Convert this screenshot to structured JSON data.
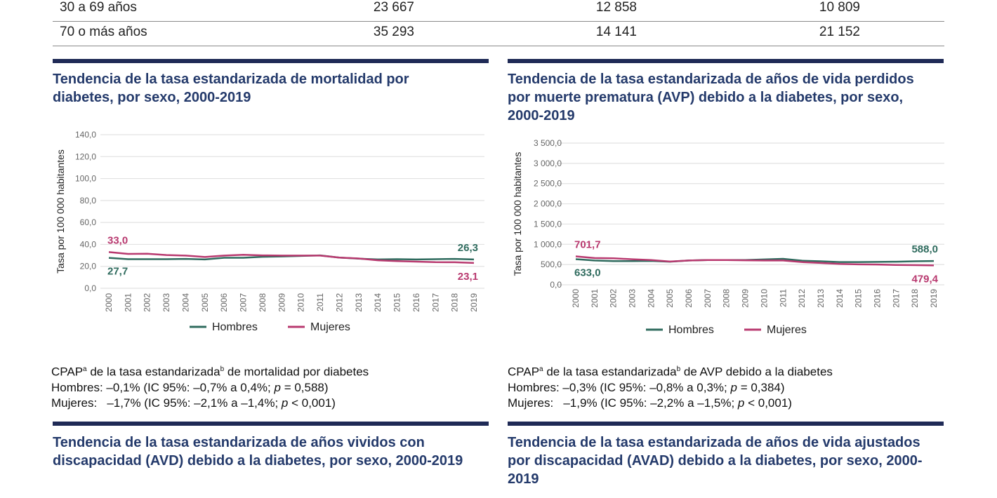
{
  "table": {
    "rows": [
      {
        "label": "30 a 69 años",
        "total": "23 667",
        "hombres": "12 858",
        "mujeres": "10 809"
      },
      {
        "label": "70 o más años",
        "total": "35 293",
        "hombres": "14 141",
        "mujeres": "21 152"
      }
    ]
  },
  "colors": {
    "hombres": "#2f6b5e",
    "mujeres": "#b8396f",
    "navy": "#1f2a56",
    "title": "#243a6b"
  },
  "sections": [
    {
      "title": "Tendencia de la tasa estandarizada de mortalidad por diabetes, por sexo, 2000-2019",
      "note_heading_pre": "CPAP",
      "note_sup_a": "a",
      "note_heading_mid": " de la tasa estandarizada",
      "note_sup_b": "b",
      "note_heading_post": " de mortalidad por diabetes",
      "note_hombres_pre": "Hombres: –0,1% (IC 95%: –0,7% a 0,4%; ",
      "note_hombres_p": "p",
      "note_hombres_post": " = 0,588)",
      "note_mujeres_pre": "Mujeres:   –1,7% (IC 95%: –2,1% a –1,4%; ",
      "note_mujeres_p": "p",
      "note_mujeres_post": " < 0,001)"
    },
    {
      "title": "Tendencia de la tasa estandarizada de años de vida perdidos por muerte prematura (AVP) debido a la diabetes, por sexo, 2000-2019",
      "note_heading_pre": "CPAP",
      "note_sup_a": "a",
      "note_heading_mid": " de la tasa estandarizada",
      "note_sup_b": "b",
      "note_heading_post": " de AVP debido a la diabetes",
      "note_hombres_pre": "Hombres: –0,3% (IC 95%: –0,8% a 0,3%; ",
      "note_hombres_p": "p",
      "note_hombres_post": " = 0,384)",
      "note_mujeres_pre": "Mujeres:   –1,9% (IC 95%: –2,2% a –1,5%; ",
      "note_mujeres_p": "p",
      "note_mujeres_post": " < 0,001)"
    },
    {
      "title": "Tendencia de la tasa estandarizada de años vividos con discapacidad (AVD) debido a la diabetes, por sexo, 2000-2019"
    },
    {
      "title": "Tendencia de la tasa estandarizada de años de vida ajustados por discapacidad (AVAD) debido a la diabetes, por sexo, 2000-2019"
    }
  ],
  "chart_data": [
    {
      "type": "line",
      "title": "Tendencia de la tasa estandarizada de mortalidad por diabetes, por sexo, 2000-2019",
      "ylabel": "Tasa por 100 000 habitantes",
      "xlabel": "",
      "x": [
        "2000",
        "2001",
        "2002",
        "2003",
        "2004",
        "2005",
        "2006",
        "2007",
        "2008",
        "2009",
        "2010",
        "2011",
        "2012",
        "2013",
        "2014",
        "2015",
        "2016",
        "2017",
        "2018",
        "2019"
      ],
      "ylim": [
        0,
        140
      ],
      "yticks": [
        "0,0",
        "20,0",
        "40,0",
        "60,0",
        "80,0",
        "100,0",
        "120,0",
        "140,0"
      ],
      "grid": true,
      "legend": "bottom",
      "series": [
        {
          "name": "Hombres",
          "values": [
            27.7,
            26.5,
            26.5,
            26.5,
            26.8,
            26.3,
            27.8,
            27.8,
            28.7,
            29.0,
            29.5,
            30.0,
            28.0,
            27.0,
            26.3,
            26.5,
            26.3,
            26.5,
            26.8,
            26.3
          ],
          "first_label": "27,7",
          "last_label": "26,3"
        },
        {
          "name": "Mujeres",
          "values": [
            33.0,
            31.3,
            31.5,
            30.3,
            29.8,
            28.5,
            29.8,
            30.5,
            30.0,
            29.8,
            29.8,
            29.8,
            28.0,
            27.2,
            25.5,
            24.8,
            24.3,
            23.8,
            23.7,
            23.1
          ],
          "first_label": "33,0",
          "last_label": "23,1"
        }
      ]
    },
    {
      "type": "line",
      "title": "Tendencia de la tasa estandarizada de años de vida perdidos por muerte prematura (AVP) debido a la diabetes, por sexo, 2000-2019",
      "ylabel": "Tasa por 100 000 habitantes",
      "xlabel": "",
      "x": [
        "2000",
        "2001",
        "2002",
        "2003",
        "2004",
        "2005",
        "2006",
        "2007",
        "2008",
        "2009",
        "2010",
        "2011",
        "2012",
        "2013",
        "2014",
        "2015",
        "2016",
        "2017",
        "2018",
        "2019"
      ],
      "ylim": [
        0,
        3500
      ],
      "yticks": [
        "0,0",
        "500,0",
        "1 000,0",
        "1 500,0",
        "2 000,0",
        "2 500,0",
        "3 000,0",
        "3 500,0"
      ],
      "grid": true,
      "legend": "bottom",
      "series": [
        {
          "name": "Hombres",
          "values": [
            633.0,
            600,
            585,
            585,
            590,
            570,
            600,
            610,
            610,
            610,
            625,
            640,
            595,
            580,
            560,
            560,
            565,
            570,
            580,
            588.0
          ],
          "first_label": "633,0",
          "last_label": "588,0"
        },
        {
          "name": "Mujeres",
          "values": [
            701.7,
            660,
            655,
            630,
            610,
            575,
            600,
            610,
            610,
            605,
            600,
            600,
            560,
            540,
            515,
            505,
            500,
            490,
            485,
            479.4
          ],
          "first_label": "701,7",
          "last_label": "479,4"
        }
      ]
    }
  ]
}
